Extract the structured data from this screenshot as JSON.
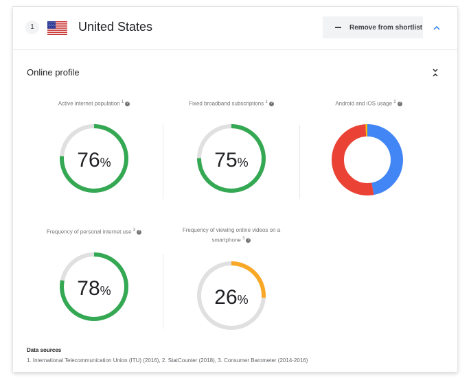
{
  "header": {
    "rank": "1",
    "country": "United States",
    "remove_label": "Remove from shortlist"
  },
  "profile": {
    "title": "Online profile",
    "metrics": [
      {
        "label": "Active internet population",
        "sup": "1",
        "value": "76",
        "unit": "%",
        "fraction": 0.76,
        "color": "#34a853"
      },
      {
        "label": "Fixed broadband subscriptions",
        "sup": "1",
        "value": "75",
        "unit": "%",
        "fraction": 0.75,
        "color": "#34a853"
      },
      {
        "label": "Android and iOS usage",
        "sup": "2"
      },
      {
        "label": "Frequency of personal internet use",
        "sup": "3",
        "value": "78",
        "unit": "%",
        "fraction": 0.78,
        "color": "#34a853"
      },
      {
        "label_line1": "Frequency of viewing online videos on a",
        "label_line2": "smartphone",
        "sup": "3",
        "value": "26",
        "unit": "%",
        "fraction": 0.26,
        "color": "#f9a825"
      }
    ],
    "os_usage": {
      "blue_fraction": 0.47,
      "red_fraction": 0.52,
      "yellow_fraction": 0.01,
      "blue_color": "#4285f4",
      "red_color": "#ea4335",
      "yellow_color": "#fbbc05"
    }
  },
  "sources": {
    "title": "Data sources",
    "text": "1. International Telecommunication Union (ITU) (2016), 2. StatCounter (2018), 3. Consumer Barometer (2014-2016)"
  },
  "colors": {
    "track": "#e0e0e0",
    "accent": "#1a73e8"
  },
  "icons": [
    "flag-us-icon",
    "minus-icon",
    "chevron-up-icon",
    "collapse-icon",
    "help-icon"
  ]
}
